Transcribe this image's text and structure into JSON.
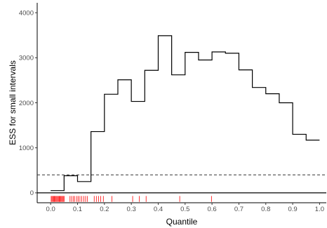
{
  "chart_data": {
    "type": "line",
    "title": "",
    "xlabel": "Quantile",
    "ylabel": "ESS for small intervals",
    "xlim": [
      -0.05,
      1.025
    ],
    "ylim": [
      -220,
      4220
    ],
    "x_ticks": [
      0.0,
      0.1,
      0.2,
      0.3,
      0.4,
      0.5,
      0.6,
      0.7,
      0.8,
      0.9,
      1.0
    ],
    "x_tick_labels": [
      "0.0",
      "0.1",
      "0.2",
      "0.3",
      "0.4",
      "0.5",
      "0.6",
      "0.7",
      "0.8",
      "0.9",
      "1.0"
    ],
    "y_ticks": [
      0,
      1000,
      2000,
      3000,
      4000
    ],
    "y_tick_labels": [
      "0",
      "1000",
      "2000",
      "3000",
      "4000"
    ],
    "grid": false,
    "series": [
      {
        "style": "step",
        "color": "#000000",
        "bin_edges": [
          0.0,
          0.05,
          0.1,
          0.15,
          0.2,
          0.25,
          0.3,
          0.35,
          0.4,
          0.45,
          0.5,
          0.55,
          0.6,
          0.65,
          0.7,
          0.75,
          0.8,
          0.85,
          0.9,
          0.95,
          1.0
        ],
        "values": [
          50,
          380,
          250,
          1360,
          2190,
          2510,
          2030,
          2720,
          3490,
          2620,
          3120,
          2950,
          3130,
          3100,
          2730,
          2340,
          2200,
          2000,
          1300,
          1170
        ]
      }
    ],
    "reference_line": {
      "y": 400,
      "style": "dashed",
      "color": "#333333"
    },
    "zero_line": {
      "y": 0,
      "color": "#000000"
    },
    "rug": {
      "color": "#ff0000",
      "y_from": -70,
      "y_to": -200,
      "x": [
        0.002,
        0.005,
        0.008,
        0.011,
        0.014,
        0.017,
        0.02,
        0.023,
        0.026,
        0.029,
        0.032,
        0.035,
        0.038,
        0.041,
        0.044,
        0.047,
        0.05,
        0.072,
        0.078,
        0.084,
        0.09,
        0.097,
        0.103,
        0.109,
        0.116,
        0.123,
        0.13,
        0.137,
        0.162,
        0.17,
        0.178,
        0.186,
        0.196,
        0.228,
        0.305,
        0.33,
        0.355,
        0.48,
        0.598
      ]
    }
  }
}
